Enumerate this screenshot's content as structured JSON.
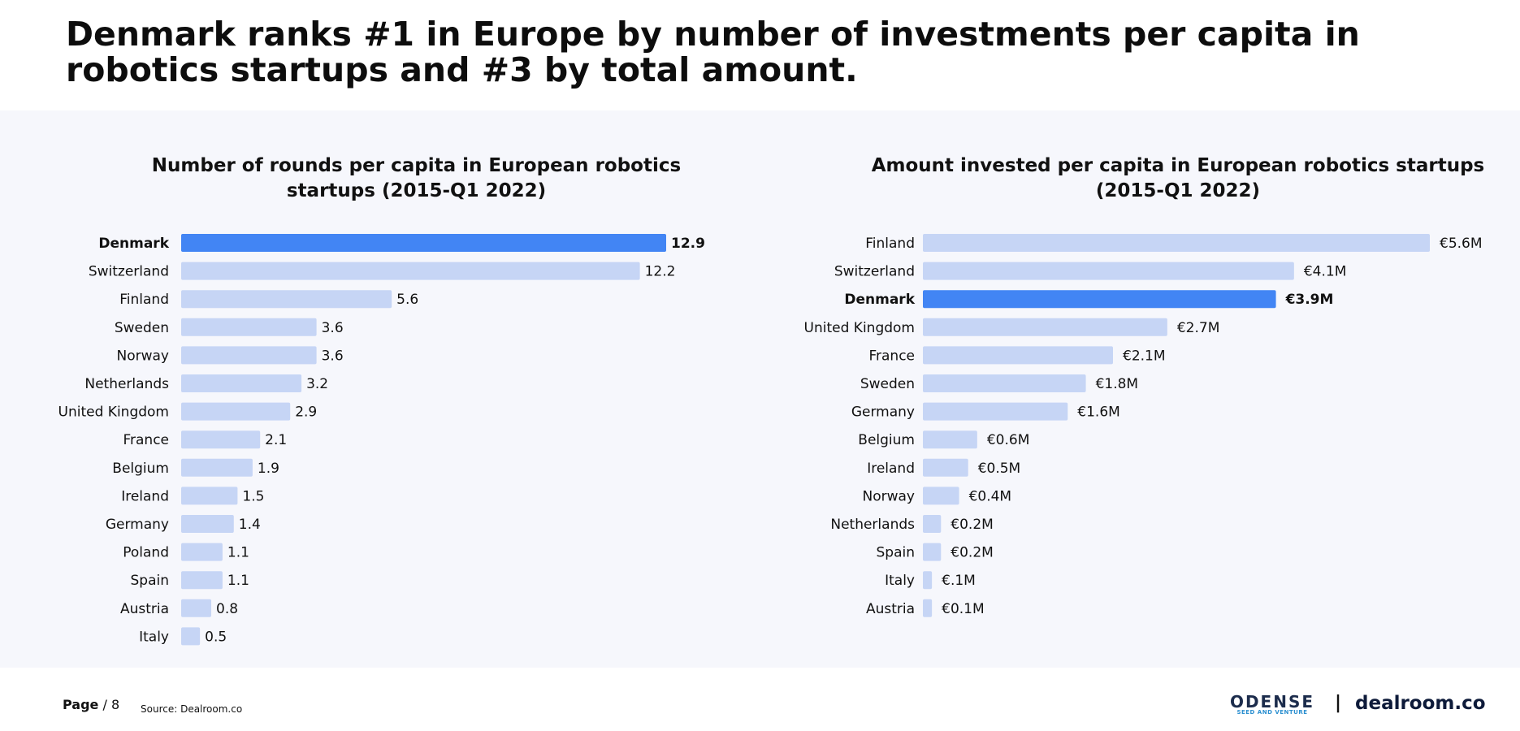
{
  "headline": "Denmark ranks #1 in Europe by number of investments per capita in robotics startups and #3 by total amount.",
  "colors": {
    "highlight": "#4285f4",
    "bar": "#c6d5f5",
    "background": "#f6f7fc"
  },
  "chart_data": [
    {
      "type": "bar",
      "orientation": "horizontal",
      "title": "Number of rounds per capita in European robotics startups (2015-Q1 2022)",
      "xlabel": "",
      "ylabel": "",
      "xlim": [
        0,
        12.9
      ],
      "highlight": "Denmark",
      "categories": [
        "Denmark",
        "Switzerland",
        "Finland",
        "Sweden",
        "Norway",
        "Netherlands",
        "United Kingdom",
        "France",
        "Belgium",
        "Ireland",
        "Germany",
        "Poland",
        "Spain",
        "Austria",
        "Italy"
      ],
      "values": [
        12.9,
        12.2,
        5.6,
        3.6,
        3.6,
        3.2,
        2.9,
        2.1,
        1.9,
        1.5,
        1.4,
        1.1,
        1.1,
        0.8,
        0.5
      ],
      "labels": [
        "12.9",
        "12.2",
        "5.6",
        "3.6",
        "3.6",
        "3.2",
        "2.9",
        "2.1",
        "1.9",
        "1.5",
        "1.4",
        "1.1",
        "1.1",
        "0.8",
        "0.5"
      ]
    },
    {
      "type": "bar",
      "orientation": "horizontal",
      "title": "Amount invested per capita in European robotics startups (2015-Q1 2022)",
      "xlabel": "",
      "ylabel": "",
      "xlim": [
        0,
        5.6
      ],
      "unit": "€M",
      "highlight": "Denmark",
      "categories": [
        "Finland",
        "Switzerland",
        "Denmark",
        "United Kingdom",
        "France",
        "Sweden",
        "Germany",
        "Belgium",
        "Ireland",
        "Norway",
        "Netherlands",
        "Spain",
        "Italy",
        "Austria"
      ],
      "values": [
        5.6,
        4.1,
        3.9,
        2.7,
        2.1,
        1.8,
        1.6,
        0.6,
        0.5,
        0.4,
        0.2,
        0.2,
        0.1,
        0.1
      ],
      "labels": [
        "€5.6M",
        "€4.1M",
        "€3.9M",
        "€2.7M",
        "€2.1M",
        "€1.8M",
        "€1.6M",
        "€0.6M",
        "€0.5M",
        "€0.4M",
        "€0.2M",
        "€0.2M",
        "€.1M",
        "€0.1M"
      ]
    }
  ],
  "footer": {
    "page_label": "Page",
    "page_number": "/ 8",
    "source": "Source: Dealroom.co",
    "brand_odense": "ODENSE",
    "brand_odense_sub": "SEED AND VENTURE",
    "brand_separator": "|",
    "brand_dealroom": "dealroom.co"
  }
}
